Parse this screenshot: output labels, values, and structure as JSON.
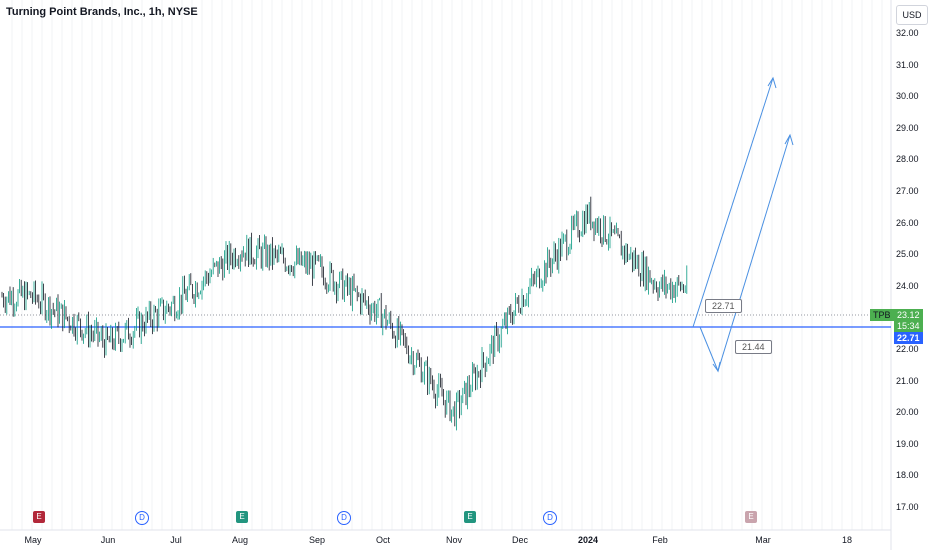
{
  "header": {
    "title": "Turning Point Brands, Inc., 1h, NYSE",
    "currency": "USD"
  },
  "price_axis": {
    "ticks": [
      "32.00",
      "31.00",
      "30.00",
      "29.00",
      "28.00",
      "27.00",
      "26.00",
      "25.00",
      "24.00",
      "22.00",
      "21.00",
      "20.00",
      "19.00",
      "18.00",
      "17.00"
    ],
    "symbol_label": "TPB",
    "last_price": "23.12",
    "countdown": "15:34",
    "line_price": "22.71"
  },
  "time_axis": {
    "ticks": [
      {
        "label": "May",
        "bold": false
      },
      {
        "label": "Jun",
        "bold": false
      },
      {
        "label": "Jul",
        "bold": false
      },
      {
        "label": "Aug",
        "bold": false
      },
      {
        "label": "Sep",
        "bold": false
      },
      {
        "label": "Oct",
        "bold": false
      },
      {
        "label": "Nov",
        "bold": false
      },
      {
        "label": "Dec",
        "bold": false
      },
      {
        "label": "2024",
        "bold": true
      },
      {
        "label": "Feb",
        "bold": false
      },
      {
        "label": "Mar",
        "bold": false
      },
      {
        "label": "18",
        "bold": false
      }
    ]
  },
  "callouts": {
    "target_up": "22.71",
    "target_down": "21.44"
  },
  "events": [
    {
      "type": "earnings",
      "label": "E",
      "color": "#b2283a"
    },
    {
      "type": "dividend",
      "label": "D",
      "color": "#2962ff"
    },
    {
      "type": "earnings",
      "label": "E",
      "color": "#22957f"
    },
    {
      "type": "dividend",
      "label": "D",
      "color": "#2962ff"
    },
    {
      "type": "earnings",
      "label": "E",
      "color": "#22957f"
    },
    {
      "type": "dividend",
      "label": "D",
      "color": "#2962ff"
    },
    {
      "type": "earnings",
      "label": "E",
      "color": "#c9a4ad"
    }
  ],
  "colors": {
    "up": "#089981",
    "down": "#131722",
    "line": "#2962ff",
    "symbol": "#4caf50"
  },
  "chart_data": {
    "type": "line",
    "title": "Turning Point Brands, Inc., 1h, NYSE",
    "x": [
      "May",
      "Jun",
      "Jul",
      "Aug",
      "Sep",
      "Oct",
      "Nov",
      "Dec",
      "2024",
      "Feb"
    ],
    "series": [
      {
        "values": [
          23.7,
          22.2,
          23.5,
          25.2,
          24.6,
          23.1,
          20.0,
          23.6,
          26.3,
          24.0
        ]
      }
    ],
    "ylim": [
      16.5,
      32.5
    ],
    "horizontal_line": 22.71
  }
}
